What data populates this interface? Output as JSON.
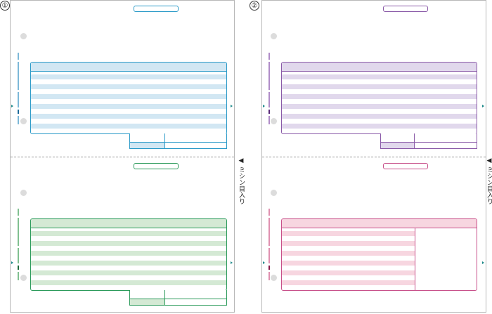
{
  "sheets": [
    {
      "label": "①",
      "top_color": "#2b9ac8",
      "bottom_color": "#2b9a5a",
      "top_tint": "#d2e7f3",
      "bottom_tint": "#d4e9d4"
    },
    {
      "label": "②",
      "top_color": "#8a5aa8",
      "bottom_color": "#c8508a",
      "top_tint": "#e1d8ec",
      "bottom_tint": "#f7d6e0"
    }
  ],
  "perforation_note": "◀ ミシン目入り",
  "tick_color": "#1d8a8a"
}
